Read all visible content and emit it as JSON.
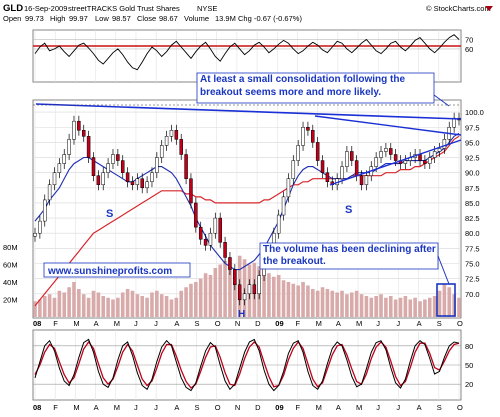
{
  "header": {
    "ticker": "GLD",
    "date": "16-Sep-2009",
    "description": "streetTRACKS Gold Trust Shares",
    "exchange": "NYSE",
    "open_label": "Open",
    "open": "99.73",
    "high_label": "High",
    "high": "99.97",
    "low_label": "Low",
    "low": "98.57",
    "close_label": "Close",
    "close": "98.67",
    "volume_label": "Volume",
    "volume": "13.9M",
    "chg_label": "Chg",
    "chg": "-0.67 (-0.67%)",
    "watermark": "© StockCharts.com"
  },
  "annotations": {
    "consolidation": "At least a small consolidation following the breakout seems more and more likely.",
    "volume": "The volume has been declining after the breakout.",
    "website": "www.sunshineprofits.com",
    "shoulder_left": "S",
    "shoulder_right": "S",
    "head": "H"
  },
  "colors": {
    "price": "#000000",
    "up_body": "#ffffff",
    "down_body": "#c0001a",
    "ma_short": "#1f2fb0",
    "ma_long": "#d7262b",
    "trend_line": "#1b2fd6",
    "annotation_text": "#1a36c0",
    "volume_bar": "#d9aaaa",
    "rsi_line": "#000000",
    "rsi_band": "#cc1111"
  },
  "chart_data": [
    {
      "type": "line",
      "panel": "rsi_top",
      "yticks": [
        70,
        60
      ],
      "ylim": [
        25,
        80
      ],
      "series": [
        {
          "values": [
            55,
            62,
            66,
            58,
            60,
            63,
            57,
            52,
            58,
            64,
            66,
            61,
            55,
            48,
            44,
            50,
            56,
            60,
            54,
            46,
            40,
            38,
            46,
            55,
            62,
            58,
            52,
            57,
            64,
            68,
            62,
            56,
            50,
            57,
            63,
            67,
            60,
            52,
            47,
            55,
            62,
            66,
            60,
            54,
            58,
            64,
            67,
            62,
            56,
            60,
            65,
            69,
            66,
            60,
            55,
            58,
            63,
            67,
            64,
            59,
            56,
            62,
            68,
            66,
            60,
            56,
            61,
            66,
            70,
            64,
            58,
            55,
            60,
            66,
            68,
            62,
            58,
            63,
            69,
            72,
            66,
            60,
            56,
            61,
            67,
            72,
            75,
            70
          ]
        }
      ]
    },
    {
      "type": "line",
      "panel": "price",
      "ylim": [
        66.0,
        102.0
      ],
      "yticks": [
        100.0,
        97.5,
        95.0,
        92.5,
        90.0,
        87.5,
        85.0,
        82.5,
        80.0,
        77.5,
        75.0,
        72.5,
        70.0
      ],
      "volume_ticks": [
        "80M",
        "60M",
        "40M",
        "20M"
      ],
      "xticks": [
        "08",
        "F",
        "M",
        "A",
        "M",
        "J",
        "J",
        "A",
        "S",
        "O",
        "N",
        "D",
        "09",
        "F",
        "M",
        "A",
        "M",
        "J",
        "J",
        "A",
        "S",
        "O"
      ],
      "close": [
        80.0,
        82.0,
        85.5,
        88.0,
        90.0,
        91.5,
        93.0,
        95.5,
        98.5,
        97.0,
        96.0,
        92.5,
        89.5,
        88.0,
        90.0,
        91.5,
        93.0,
        92.0,
        90.0,
        88.5,
        88.0,
        89.0,
        87.5,
        88.5,
        90.0,
        92.5,
        94.5,
        96.0,
        97.0,
        95.5,
        93.0,
        89.0,
        85.0,
        81.0,
        79.0,
        78.0,
        80.0,
        82.5,
        78.5,
        76.0,
        74.0,
        71.5,
        69.0,
        70.0,
        71.5,
        70.0,
        73.0,
        75.0,
        77.5,
        80.0,
        83.0,
        86.0,
        89.0,
        92.0,
        94.5,
        97.5,
        97.0,
        95.0,
        92.0,
        90.0,
        88.5,
        88.0,
        89.0,
        91.0,
        93.5,
        92.0,
        89.5,
        88.0,
        89.5,
        91.0,
        92.5,
        93.5,
        94.0,
        93.0,
        92.0,
        91.5,
        92.0,
        92.5,
        93.0,
        92.0,
        91.5,
        92.5,
        93.5,
        94.0,
        95.5,
        97.5,
        99.0,
        98.7
      ],
      "ma_short": [
        82.0,
        83.0,
        84.0,
        85.5,
        86.5,
        87.5,
        89.0,
        90.5,
        91.5,
        92.0,
        92.5,
        92.5,
        92.0,
        91.5,
        91.0,
        90.5,
        90.0,
        89.5,
        89.0,
        88.5,
        88.5,
        89.0,
        89.5,
        90.0,
        90.5,
        91.0,
        91.0,
        90.5,
        90.0,
        89.0,
        87.5,
        86.0,
        84.5,
        82.5,
        81.0,
        79.5,
        78.0,
        77.0,
        76.0,
        75.0,
        74.5,
        74.0,
        74.0,
        74.5,
        75.0,
        75.5,
        76.5,
        77.5,
        79.0,
        80.5,
        82.0,
        84.0,
        86.0,
        88.0,
        89.5,
        90.5,
        91.0,
        91.0,
        90.5,
        90.0,
        89.5,
        89.0,
        89.0,
        89.0,
        89.0,
        89.5,
        90.0,
        90.0,
        90.0,
        90.0,
        90.5,
        91.0,
        91.5,
        91.5,
        91.5,
        91.5,
        92.0,
        92.0,
        92.0,
        92.0,
        92.0,
        92.5,
        93.0,
        93.5,
        94.0,
        95.0,
        96.0,
        96.5
      ],
      "ma_long": [
        68.0,
        69.0,
        70.0,
        71.0,
        72.0,
        73.0,
        74.0,
        75.0,
        76.0,
        77.0,
        78.0,
        79.0,
        80.0,
        80.5,
        81.0,
        81.5,
        82.0,
        82.5,
        83.0,
        83.5,
        84.0,
        84.5,
        85.0,
        85.5,
        86.0,
        86.5,
        87.0,
        87.0,
        87.0,
        87.0,
        87.0,
        86.5,
        86.5,
        86.0,
        86.0,
        85.5,
        85.5,
        85.0,
        85.0,
        85.0,
        85.0,
        85.0,
        85.0,
        85.0,
        85.0,
        85.0,
        85.0,
        85.5,
        85.5,
        86.0,
        86.5,
        87.0,
        87.5,
        88.0,
        88.0,
        88.5,
        88.5,
        89.0,
        89.0,
        89.0,
        89.0,
        89.0,
        89.0,
        89.0,
        89.0,
        89.5,
        89.5,
        89.5,
        89.5,
        89.5,
        89.5,
        89.5,
        90.0,
        90.0,
        90.0,
        90.5,
        90.5,
        90.5,
        91.0,
        91.0,
        91.5,
        92.0,
        92.5,
        93.0,
        93.5,
        94.5,
        95.5,
        96.0
      ],
      "volume": [
        18,
        20,
        24,
        26,
        22,
        30,
        28,
        34,
        40,
        32,
        26,
        22,
        30,
        28,
        24,
        22,
        20,
        22,
        28,
        32,
        30,
        26,
        24,
        22,
        28,
        30,
        26,
        24,
        20,
        22,
        30,
        34,
        38,
        40,
        44,
        50,
        48,
        56,
        60,
        64,
        58,
        52,
        70,
        66,
        60,
        62,
        58,
        54,
        50,
        46,
        48,
        42,
        40,
        38,
        36,
        40,
        36,
        32,
        30,
        34,
        32,
        30,
        28,
        30,
        26,
        28,
        30,
        26,
        24,
        22,
        24,
        26,
        22,
        24,
        20,
        22,
        24,
        20,
        22,
        18,
        20,
        22,
        24,
        30,
        38,
        34,
        26,
        22
      ]
    },
    {
      "type": "line",
      "panel": "stochastic",
      "yticks": [
        80,
        50,
        20
      ],
      "ylim": [
        0,
        100
      ],
      "series": [
        {
          "values": [
            30,
            55,
            80,
            88,
            72,
            45,
            25,
            18,
            35,
            62,
            85,
            90,
            70,
            40,
            20,
            15,
            30,
            58,
            80,
            86,
            65,
            38,
            18,
            12,
            28,
            55,
            78,
            88,
            80,
            55,
            30,
            15,
            10,
            22,
            48,
            72,
            85,
            78,
            50,
            25,
            12,
            20,
            45,
            70,
            86,
            90,
            72,
            42,
            20,
            10,
            18,
            40,
            68,
            84,
            88,
            70,
            40,
            18,
            12,
            25,
            52,
            76,
            86,
            80,
            58,
            32,
            16,
            20,
            44,
            70,
            85,
            88,
            74,
            46,
            22,
            14,
            28,
            56,
            80,
            88,
            82,
            60,
            36,
            40,
            62,
            80,
            86,
            84
          ]
        },
        {
          "values": [
            35,
            50,
            70,
            82,
            76,
            55,
            35,
            22,
            30,
            52,
            75,
            86,
            76,
            52,
            30,
            20,
            28,
            48,
            70,
            82,
            72,
            50,
            28,
            18,
            25,
            45,
            68,
            82,
            82,
            64,
            42,
            24,
            14,
            20,
            40,
            62,
            78,
            80,
            62,
            38,
            20,
            18,
            36,
            60,
            78,
            86,
            78,
            54,
            32,
            16,
            18,
            34,
            58,
            76,
            86,
            76,
            52,
            28,
            16,
            22,
            44,
            66,
            80,
            82,
            66,
            44,
            24,
            20,
            36,
            60,
            78,
            86,
            78,
            56,
            32,
            18,
            24,
            46,
            70,
            84,
            84,
            68,
            46,
            42,
            56,
            72,
            82,
            84
          ]
        }
      ]
    }
  ]
}
